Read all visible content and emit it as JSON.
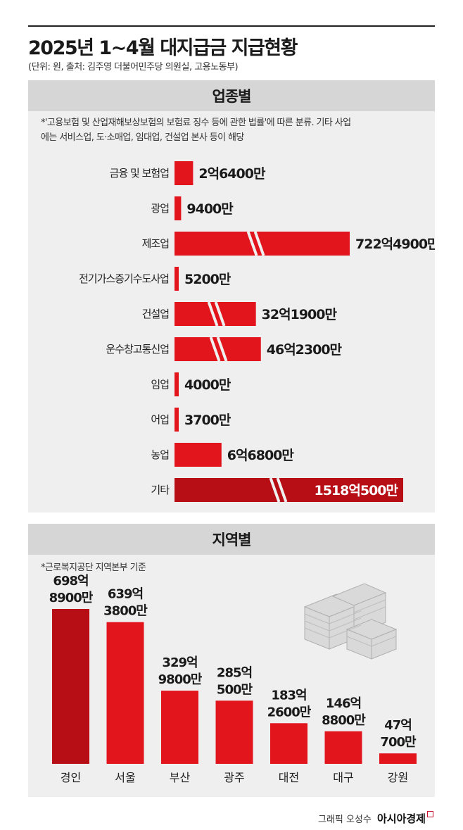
{
  "header": {
    "title": "2025년 1~4월 대지급금 지급현황",
    "subtitle": "(단위: 원, 출처: 김주영 더불어민주당 의원실, 고용노동부)"
  },
  "industry_section": {
    "heading": "업종별",
    "note_line1": "*'고용보험 및 산업재해보상보험의 보험료 징수 등에 관한 법률'에 따른 분류. 기타 사업",
    "note_line2": "에는 서비스업, 도·소매업, 임대업, 건설업 본사 등이 해당"
  },
  "region_section": {
    "heading": "지역별",
    "note": "*근로복지공단 지역본부 기준"
  },
  "credit": {
    "text": "그래픽 오성수",
    "brand": "아시아경제"
  },
  "colors": {
    "bar": "#e2141c",
    "bar_dark": "#b70d14",
    "panel": "#efefef",
    "panel_head": "#d6d6d6"
  },
  "chart_data": [
    {
      "type": "bar",
      "orientation": "horizontal",
      "title": "업종별",
      "categories": [
        "금융 및 보험업",
        "광업",
        "제조업",
        "전기가스증기수도사업",
        "건설업",
        "운수창고통신업",
        "임업",
        "어업",
        "농업",
        "기타"
      ],
      "values": [
        264000000,
        94000000,
        72249000000,
        52000000,
        3219000000,
        4623000000,
        40000000,
        37000000,
        668000000,
        151805000000
      ],
      "value_labels": [
        "2억6400만",
        "9400만",
        "722억4900만",
        "5200만",
        "32억1900만",
        "46억2300만",
        "4000만",
        "3700만",
        "6억6800만",
        "1518억500만"
      ],
      "axis_break_categories": [
        "제조업",
        "건설업",
        "운수창고통신업",
        "기타"
      ],
      "unit": "원"
    },
    {
      "type": "bar",
      "orientation": "vertical",
      "title": "지역별",
      "categories": [
        "경인",
        "서울",
        "부산",
        "광주",
        "대전",
        "대구",
        "강원"
      ],
      "values": [
        69889000000,
        63938000000,
        32998000000,
        28505000000,
        18326000000,
        14688000000,
        4707000000
      ],
      "value_labels_top": [
        "698억",
        "639억",
        "329억",
        "285억",
        "183억",
        "146억",
        "47억"
      ],
      "value_labels_bottom": [
        "8900만",
        "3800만",
        "9800만",
        "500만",
        "2600만",
        "8800만",
        "700만"
      ],
      "unit": "원"
    }
  ]
}
